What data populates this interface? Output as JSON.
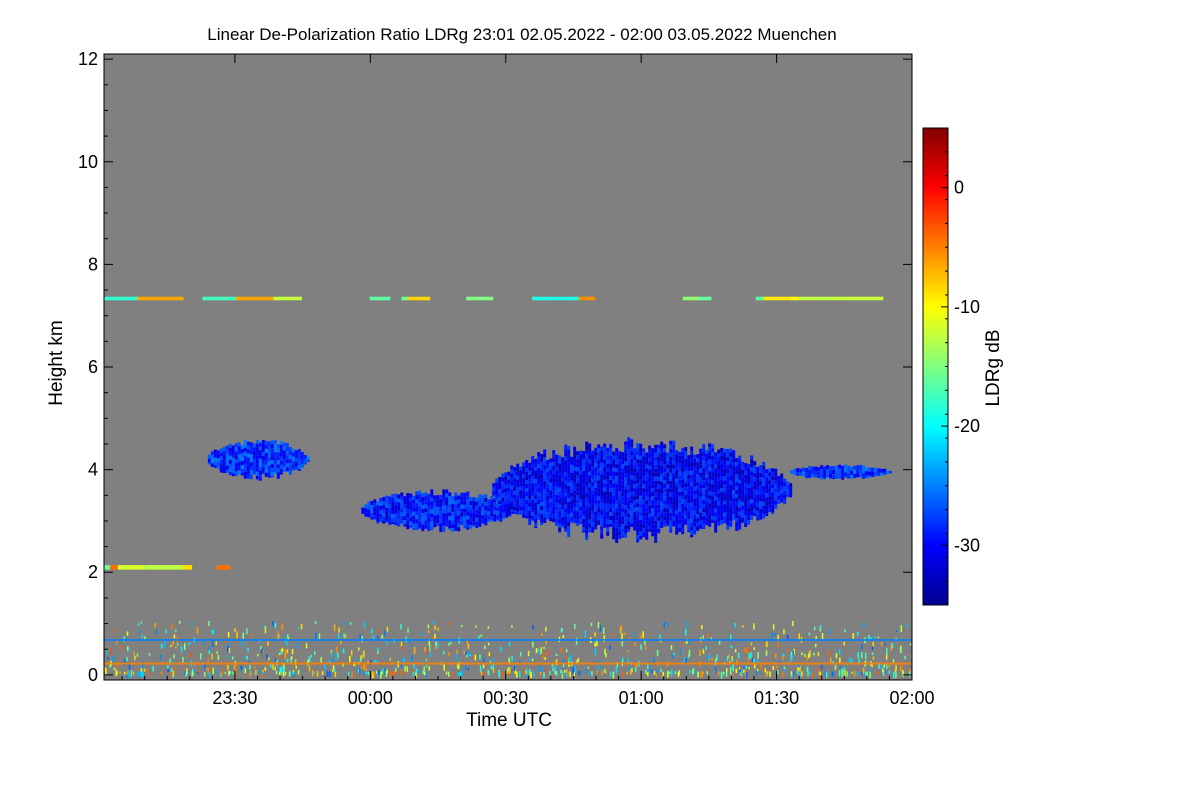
{
  "chart_data": {
    "type": "heatmap",
    "title": "Linear De-Polarization Ratio LDRg   23:01 02.05.2022 - 02:00 03.05.2022 Muenchen",
    "xlabel": "Time UTC",
    "ylabel": "Height km",
    "colorbar_label": "LDRg dB",
    "x_range_minutes_since_midnight": [
      -59,
      120
    ],
    "x_ticks": [
      {
        "label": "23:30",
        "minutes": -30
      },
      {
        "label": "00:00",
        "minutes": 0
      },
      {
        "label": "00:30",
        "minutes": 30
      },
      {
        "label": "01:00",
        "minutes": 60
      },
      {
        "label": "01:30",
        "minutes": 90
      },
      {
        "label": "02:00",
        "minutes": 120
      }
    ],
    "y_range_km": [
      -0.1,
      12.1
    ],
    "y_ticks": [
      0,
      2,
      4,
      6,
      8,
      10,
      12
    ],
    "color_range_db": [
      -35,
      5
    ],
    "color_ticks": [
      0,
      -10,
      -20,
      -30
    ],
    "background": "#808080",
    "colormap": [
      "#00008f",
      "#0000ff",
      "#0080ff",
      "#00ffff",
      "#80ff80",
      "#ffff00",
      "#ff8000",
      "#ff0000",
      "#800000"
    ],
    "features": [
      {
        "name": "cloud-left",
        "t": [
          -36,
          -14
        ],
        "h": [
          3.8,
          4.6
        ],
        "ldr_db": -28
      },
      {
        "name": "cloud-lower-left",
        "t": [
          -2,
          32
        ],
        "h": [
          2.8,
          3.6
        ],
        "ldr_db": -29
      },
      {
        "name": "cloud-main",
        "t": [
          27,
          93
        ],
        "h": [
          2.6,
          4.6
        ],
        "ldr_db": -30
      },
      {
        "name": "cloud-tail",
        "t": [
          93,
          115
        ],
        "h": [
          3.8,
          4.1
        ],
        "ldr_db": -28
      },
      {
        "name": "cirrus-layer",
        "t": [
          -59,
          120
        ],
        "h": [
          7.3,
          7.35
        ],
        "ldr_db": -12
      },
      {
        "name": "layer-2km",
        "t": [
          -59,
          -31
        ],
        "h": [
          2.05,
          2.12
        ],
        "ldr_db": -10
      },
      {
        "name": "boundary-layer",
        "t": [
          -59,
          120
        ],
        "h": [
          0.0,
          1.0
        ],
        "ldr_db": -15
      }
    ]
  }
}
